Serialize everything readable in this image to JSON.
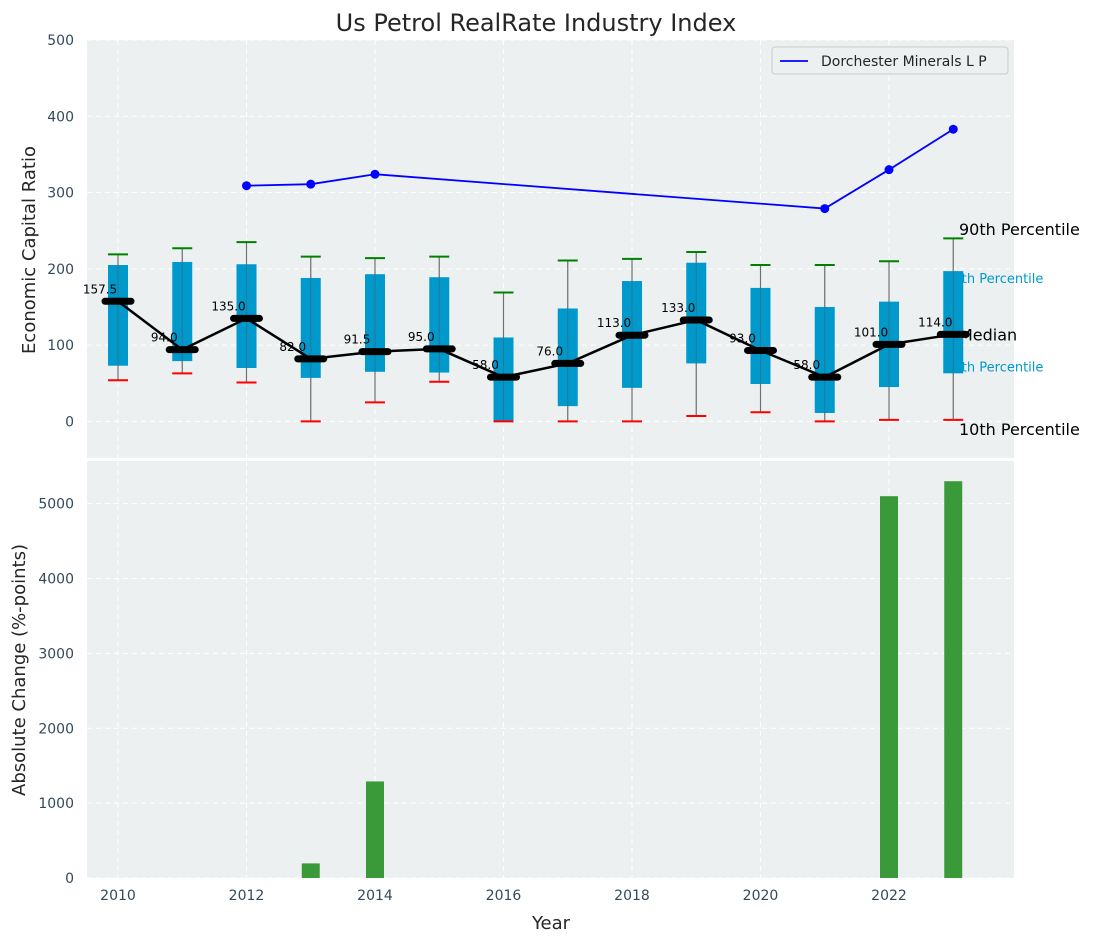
{
  "chart_data": [
    {
      "type": "box",
      "title": "Us Petrol RealRate Industry Index",
      "ylabel": "Economic Capital Ratio",
      "ylim": [
        -48,
        500
      ],
      "yticks": [
        0,
        100,
        200,
        300,
        400,
        500
      ],
      "x": [
        2010,
        2011,
        2012,
        2013,
        2014,
        2015,
        2016,
        2017,
        2018,
        2019,
        2020,
        2021,
        2022,
        2023
      ],
      "p10": [
        54,
        63,
        51,
        0,
        25,
        52,
        0,
        0,
        0,
        7,
        12,
        0,
        2,
        2
      ],
      "p25": [
        73,
        79,
        70,
        57,
        65,
        64,
        1,
        20,
        44,
        76,
        49,
        11,
        45,
        63
      ],
      "median": [
        157.5,
        94.0,
        135.0,
        82.0,
        91.5,
        95.0,
        58.0,
        76.0,
        113.0,
        133.0,
        93.0,
        58.0,
        101.0,
        114.0
      ],
      "p75": [
        205,
        209,
        206,
        188,
        193,
        189,
        110,
        148,
        184,
        208,
        175,
        150,
        157,
        197
      ],
      "p90": [
        219,
        227,
        235,
        216,
        214,
        216,
        169,
        211,
        213,
        222,
        205,
        205,
        210,
        240
      ],
      "series": [
        {
          "name": "Dorchester Minerals L P",
          "x": [
            2012,
            2013,
            2014,
            2021,
            2022,
            2023
          ],
          "values": [
            309,
            311,
            324,
            279,
            330,
            383
          ],
          "color": "#0000ff"
        }
      ],
      "legend": "top-right",
      "annotations": [
        {
          "text": "90th Percentile",
          "y": 252,
          "color": "#000000"
        },
        {
          "text": "75th Percentile",
          "y": 188,
          "color": "#0099cc"
        },
        {
          "text": "Median",
          "y": 114,
          "color": "#000000"
        },
        {
          "text": "25th Percentile",
          "y": 72,
          "color": "#0099cc"
        },
        {
          "text": "10th Percentile",
          "y": -10,
          "color": "#000000"
        }
      ],
      "grid": true
    },
    {
      "type": "bar",
      "xlabel": "Year",
      "ylabel": "Absolute Change (%-points)",
      "ylim": [
        0,
        5570
      ],
      "yticks": [
        0,
        1000,
        2000,
        3000,
        4000,
        5000
      ],
      "xticks": [
        2010,
        2012,
        2014,
        2016,
        2018,
        2020,
        2022
      ],
      "x": [
        2013,
        2014,
        2022,
        2023
      ],
      "values": [
        195,
        1290,
        5100,
        5300
      ],
      "color": "#3a9a3a",
      "grid": true
    }
  ]
}
